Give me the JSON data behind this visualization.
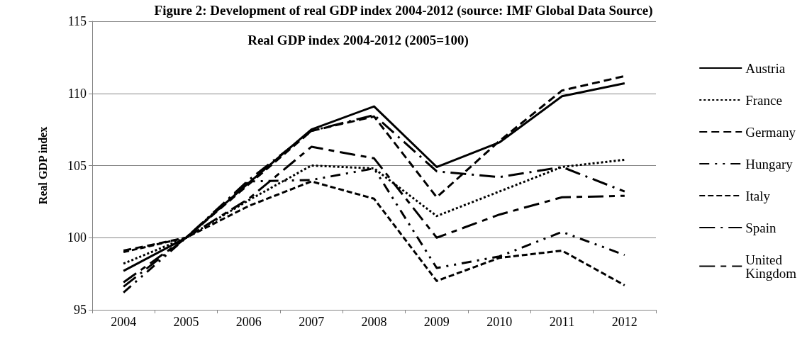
{
  "chart_data": {
    "type": "line",
    "title": "Figure 2: Development of real GDP index 2004-2012 (source: IMF Global Data Source)",
    "subtitle": "Real GDP index 2004-2012 (2005=100)",
    "ylabel": "Real GDP index",
    "categories": [
      "2004",
      "2005",
      "2006",
      "2007",
      "2008",
      "2009",
      "2010",
      "2011",
      "2012"
    ],
    "series": [
      {
        "name": "Austria",
        "color": "#000000",
        "line_style": "solid",
        "values": [
          97.7,
          100,
          103.8,
          107.5,
          109.1,
          104.9,
          106.6,
          109.8,
          110.7
        ]
      },
      {
        "name": "France",
        "color": "#000000",
        "line_style": "dotted",
        "values": [
          98.2,
          100,
          102.6,
          105.0,
          104.8,
          101.5,
          103.2,
          104.9,
          105.4
        ]
      },
      {
        "name": "Germany",
        "color": "#000000",
        "line_style": "dashed",
        "values": [
          99.1,
          100,
          103.7,
          107.4,
          108.4,
          102.8,
          106.7,
          110.2,
          111.2
        ]
      },
      {
        "name": "Hungary",
        "color": "#000000",
        "line_style": "dashdotdot",
        "values": [
          96.2,
          100,
          103.9,
          104.0,
          104.8,
          97.9,
          98.7,
          100.4,
          98.8
        ]
      },
      {
        "name": "Italy",
        "color": "#000000",
        "line_style": "shortdash",
        "values": [
          99.0,
          100,
          102.2,
          103.9,
          102.7,
          97.0,
          98.6,
          99.1,
          96.7
        ]
      },
      {
        "name": "Spain",
        "color": "#000000",
        "line_style": "longdashdot",
        "values": [
          96.6,
          100,
          104.0,
          107.4,
          108.5,
          104.6,
          104.2,
          104.9,
          103.2
        ]
      },
      {
        "name": "United Kingdom",
        "color": "#000000",
        "line_style": "longdashdash",
        "values": [
          96.9,
          100,
          102.7,
          106.3,
          105.5,
          100.0,
          101.6,
          102.8,
          102.9
        ]
      }
    ],
    "ylim": [
      95,
      115
    ],
    "yticks": [
      95,
      100,
      105,
      110,
      115
    ],
    "grid": "y",
    "legend": "right",
    "marker": "none"
  }
}
